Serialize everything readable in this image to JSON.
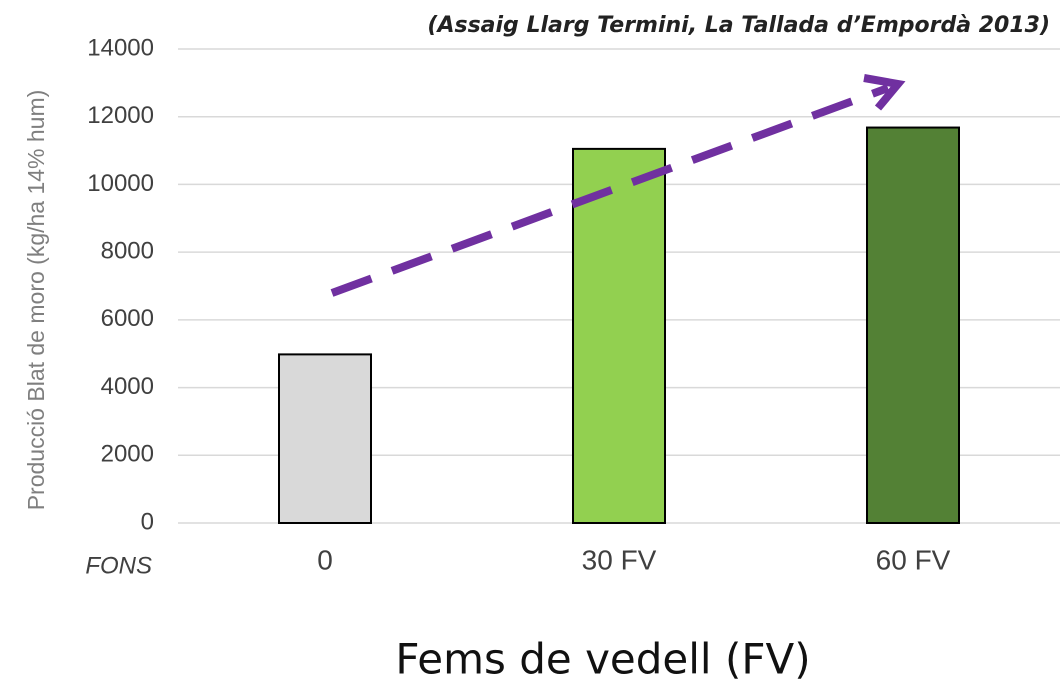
{
  "chart_data": {
    "type": "bar",
    "subtitle": "(Assaig Llarg Termini, La Tallada d’Empordà 2013)",
    "y_label": "Producció Blat de moro (kg/ha 14% hum)",
    "x_label": "Fems de vedell (FV)",
    "annotation": "FONS",
    "categories": [
      "0",
      "30 FV",
      "60 FV"
    ],
    "values": [
      4980,
      11050,
      11680
    ],
    "colors": [
      "#d9d9d9",
      "#92d050",
      "#538135"
    ],
    "ylim": [
      0,
      14000
    ],
    "yticks": [
      0,
      2000,
      4000,
      6000,
      8000,
      10000,
      12000,
      14000
    ],
    "grid": true
  }
}
